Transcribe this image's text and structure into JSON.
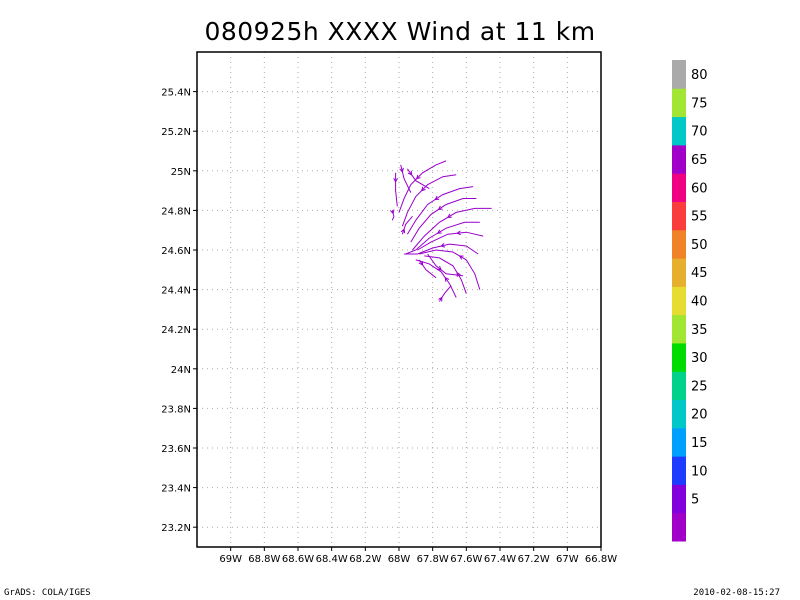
{
  "title": "080925h XXXX Wind at 11 km",
  "footer": {
    "left": "GrADS: COLA/IGES",
    "right": "2010-02-08-15:27"
  },
  "chart_data": {
    "type": "streamline",
    "title": "080925h XXXX Wind at 11 km",
    "xlim": [
      -69.2,
      -66.8
    ],
    "ylim": [
      23.1,
      25.6
    ],
    "grid": true,
    "x_ticks": [
      {
        "value": -69.0,
        "label": "69W"
      },
      {
        "value": -68.8,
        "label": "68.8W"
      },
      {
        "value": -68.6,
        "label": "68.6W"
      },
      {
        "value": -68.4,
        "label": "68.4W"
      },
      {
        "value": -68.2,
        "label": "68.2W"
      },
      {
        "value": -68.0,
        "label": "68W"
      },
      {
        "value": -67.8,
        "label": "67.8W"
      },
      {
        "value": -67.6,
        "label": "67.6W"
      },
      {
        "value": -67.4,
        "label": "67.4W"
      },
      {
        "value": -67.2,
        "label": "67.2W"
      },
      {
        "value": -67.0,
        "label": "67W"
      },
      {
        "value": -66.8,
        "label": "66.8W"
      }
    ],
    "y_ticks": [
      {
        "value": 23.2,
        "label": "23.2N"
      },
      {
        "value": 23.4,
        "label": "23.4N"
      },
      {
        "value": 23.6,
        "label": "23.6N"
      },
      {
        "value": 23.8,
        "label": "23.8N"
      },
      {
        "value": 24.0,
        "label": "24N"
      },
      {
        "value": 24.2,
        "label": "24.2N"
      },
      {
        "value": 24.4,
        "label": "24.4N"
      },
      {
        "value": 24.6,
        "label": "24.6N"
      },
      {
        "value": 24.8,
        "label": "24.8N"
      },
      {
        "value": 25.0,
        "label": "25N"
      },
      {
        "value": 25.2,
        "label": "25.2N"
      },
      {
        "value": 25.4,
        "label": "25.4N"
      }
    ],
    "streamline_color": "#9900cc",
    "streamlines": [
      [
        [
          -67.72,
          25.05
        ],
        [
          -67.78,
          25.03
        ],
        [
          -67.86,
          24.99
        ],
        [
          -67.93,
          24.93
        ],
        [
          -67.97,
          24.86
        ],
        [
          -68.0,
          24.79
        ]
      ],
      [
        [
          -67.66,
          24.98
        ],
        [
          -67.74,
          24.97
        ],
        [
          -67.83,
          24.93
        ],
        [
          -67.9,
          24.87
        ],
        [
          -67.95,
          24.79
        ],
        [
          -67.98,
          24.72
        ]
      ],
      [
        [
          -67.56,
          24.92
        ],
        [
          -67.64,
          24.91
        ],
        [
          -67.74,
          24.88
        ],
        [
          -67.83,
          24.83
        ],
        [
          -67.9,
          24.75
        ],
        [
          -67.95,
          24.68
        ]
      ],
      [
        [
          -67.54,
          24.86
        ],
        [
          -67.62,
          24.86
        ],
        [
          -67.72,
          24.83
        ],
        [
          -67.81,
          24.78
        ],
        [
          -67.88,
          24.71
        ],
        [
          -67.93,
          24.64
        ]
      ],
      [
        [
          -67.45,
          24.81
        ],
        [
          -67.55,
          24.81
        ],
        [
          -67.66,
          24.79
        ],
        [
          -67.76,
          24.74
        ],
        [
          -67.85,
          24.67
        ],
        [
          -67.92,
          24.6
        ]
      ],
      [
        [
          -67.52,
          24.74
        ],
        [
          -67.61,
          24.74
        ],
        [
          -67.72,
          24.71
        ],
        [
          -67.82,
          24.66
        ],
        [
          -67.9,
          24.6
        ],
        [
          -67.96,
          24.58
        ]
      ],
      [
        [
          -67.5,
          24.67
        ],
        [
          -67.6,
          24.69
        ],
        [
          -67.71,
          24.68
        ],
        [
          -67.81,
          24.64
        ],
        [
          -67.89,
          24.6
        ]
      ],
      [
        [
          -67.53,
          24.58
        ],
        [
          -67.6,
          24.62
        ],
        [
          -67.7,
          24.63
        ],
        [
          -67.8,
          24.61
        ],
        [
          -67.89,
          24.58
        ],
        [
          -67.97,
          24.58
        ]
      ],
      [
        [
          -67.52,
          24.4
        ],
        [
          -67.55,
          24.48
        ],
        [
          -67.6,
          24.55
        ],
        [
          -67.68,
          24.59
        ],
        [
          -67.78,
          24.6
        ],
        [
          -67.88,
          24.58
        ]
      ],
      [
        [
          -67.6,
          24.38
        ],
        [
          -67.63,
          24.45
        ],
        [
          -67.68,
          24.52
        ],
        [
          -67.76,
          24.56
        ],
        [
          -67.85,
          24.57
        ]
      ],
      [
        [
          -67.66,
          24.36
        ],
        [
          -67.7,
          24.43
        ],
        [
          -67.75,
          24.49
        ],
        [
          -67.82,
          24.53
        ],
        [
          -67.9,
          24.55
        ]
      ],
      [
        [
          -67.76,
          24.34
        ],
        [
          -67.73,
          24.38
        ],
        [
          -67.69,
          24.42
        ]
      ],
      [
        [
          -67.83,
          24.58
        ],
        [
          -67.78,
          24.52
        ],
        [
          -67.72,
          24.48
        ],
        [
          -67.62,
          24.47
        ]
      ],
      [
        [
          -67.88,
          24.55
        ],
        [
          -67.84,
          24.5
        ],
        [
          -67.78,
          24.46
        ]
      ],
      [
        [
          -67.98,
          24.68
        ],
        [
          -67.96,
          24.73
        ],
        [
          -67.92,
          24.77
        ]
      ],
      [
        [
          -68.02,
          24.99
        ],
        [
          -68.02,
          24.9
        ],
        [
          -68.01,
          24.82
        ]
      ],
      [
        [
          -67.99,
          25.03
        ],
        [
          -67.97,
          24.96
        ],
        [
          -67.93,
          24.89
        ]
      ],
      [
        [
          -67.95,
          25.01
        ],
        [
          -67.9,
          24.95
        ],
        [
          -67.82,
          24.91
        ]
      ],
      [
        [
          -68.04,
          24.8
        ],
        [
          -68.03,
          24.77
        ],
        [
          -68.04,
          24.75
        ]
      ]
    ],
    "colorbar": {
      "labels": [
        "5",
        "10",
        "15",
        "20",
        "25",
        "30",
        "35",
        "40",
        "45",
        "50",
        "55",
        "60",
        "65",
        "70",
        "75",
        "80"
      ],
      "colors": [
        "#a000c8",
        "#8200dc",
        "#1e3cff",
        "#00a0ff",
        "#00c8c8",
        "#00d28c",
        "#00dc00",
        "#a0e632",
        "#e6dc32",
        "#e6af2d",
        "#f08228",
        "#fa3c3c",
        "#f00082",
        "#a000c8",
        "#00c8c8",
        "#a0e632",
        "#aaaaaa"
      ]
    }
  }
}
